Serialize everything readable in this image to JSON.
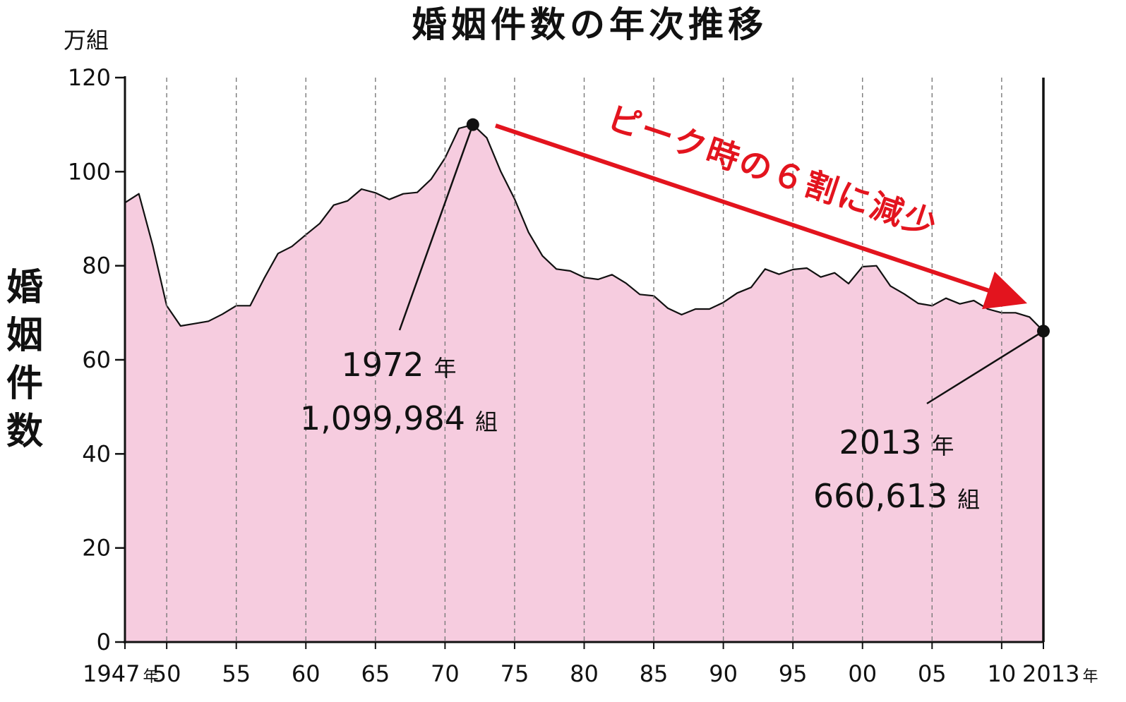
{
  "title": "婚姻件数の年次推移",
  "colors": {
    "fill": "#f6ccdf",
    "line": "#111111",
    "accent": "#e3141e",
    "grid": "#7a7a7a"
  },
  "chart_data": {
    "type": "area",
    "title": "婚姻件数の年次推移",
    "ylabel": "婚姻件数",
    "yunit": "万組",
    "ylim": [
      0,
      120
    ],
    "yticks": [
      0,
      20,
      40,
      60,
      80,
      100,
      120
    ],
    "xlim": [
      1947,
      2013
    ],
    "xticks": [
      {
        "year": 1947,
        "label": "1947",
        "suffix": "年"
      },
      {
        "year": 1950,
        "label": "50"
      },
      {
        "year": 1955,
        "label": "55"
      },
      {
        "year": 1960,
        "label": "60"
      },
      {
        "year": 1965,
        "label": "65"
      },
      {
        "year": 1970,
        "label": "70"
      },
      {
        "year": 1975,
        "label": "75"
      },
      {
        "year": 1980,
        "label": "80"
      },
      {
        "year": 1985,
        "label": "85"
      },
      {
        "year": 1990,
        "label": "90"
      },
      {
        "year": 1995,
        "label": "95"
      },
      {
        "year": 2000,
        "label": "00"
      },
      {
        "year": 2005,
        "label": "05"
      },
      {
        "year": 2010,
        "label": "10"
      },
      {
        "year": 2013,
        "label": "2013",
        "suffix": "年"
      }
    ],
    "grid_x": "dashed",
    "x": [
      1947,
      1948,
      1949,
      1950,
      1951,
      1952,
      1953,
      1954,
      1955,
      1956,
      1957,
      1958,
      1959,
      1960,
      1961,
      1962,
      1963,
      1964,
      1965,
      1966,
      1967,
      1968,
      1969,
      1970,
      1971,
      1972,
      1973,
      1974,
      1975,
      1976,
      1977,
      1978,
      1979,
      1980,
      1981,
      1982,
      1983,
      1984,
      1985,
      1986,
      1987,
      1988,
      1989,
      1990,
      1991,
      1992,
      1993,
      1994,
      1995,
      1996,
      1997,
      1998,
      1999,
      2000,
      2001,
      2002,
      2003,
      2004,
      2005,
      2006,
      2007,
      2008,
      2009,
      2010,
      2011,
      2012,
      2013
    ],
    "values": [
      93.4,
      95.3,
      84.3,
      71.5,
      67.2,
      67.7,
      68.2,
      69.7,
      71.5,
      71.5,
      77.3,
      82.6,
      84.1,
      86.6,
      89.0,
      92.9,
      93.8,
      96.3,
      95.5,
      94.1,
      95.3,
      95.6,
      98.4,
      102.9,
      109.2,
      110.0,
      107.2,
      100.1,
      94.2,
      87.1,
      82.1,
      79.3,
      78.9,
      77.5,
      77.1,
      78.1,
      76.3,
      73.9,
      73.6,
      71.0,
      69.6,
      70.8,
      70.8,
      72.2,
      74.2,
      75.4,
      79.3,
      78.2,
      79.2,
      79.5,
      77.6,
      78.5,
      76.2,
      79.8,
      80.0,
      75.7,
      74.0,
      72.0,
      71.5,
      73.1,
      71.9,
      72.6,
      70.8,
      70.0,
      70.0,
      69.1,
      66.1
    ],
    "annotations": [
      {
        "year": 1972,
        "value": 110.0,
        "line1": "1972",
        "line1_suffix": "年",
        "line2": "1,099,984",
        "line2_suffix": "組"
      },
      {
        "year": 2013,
        "value": 66.1,
        "line1": "2013",
        "line1_suffix": "年",
        "line2": "660,613",
        "line2_suffix": "組"
      }
    ],
    "arrow_text": "ピーク時の６割に減少"
  }
}
